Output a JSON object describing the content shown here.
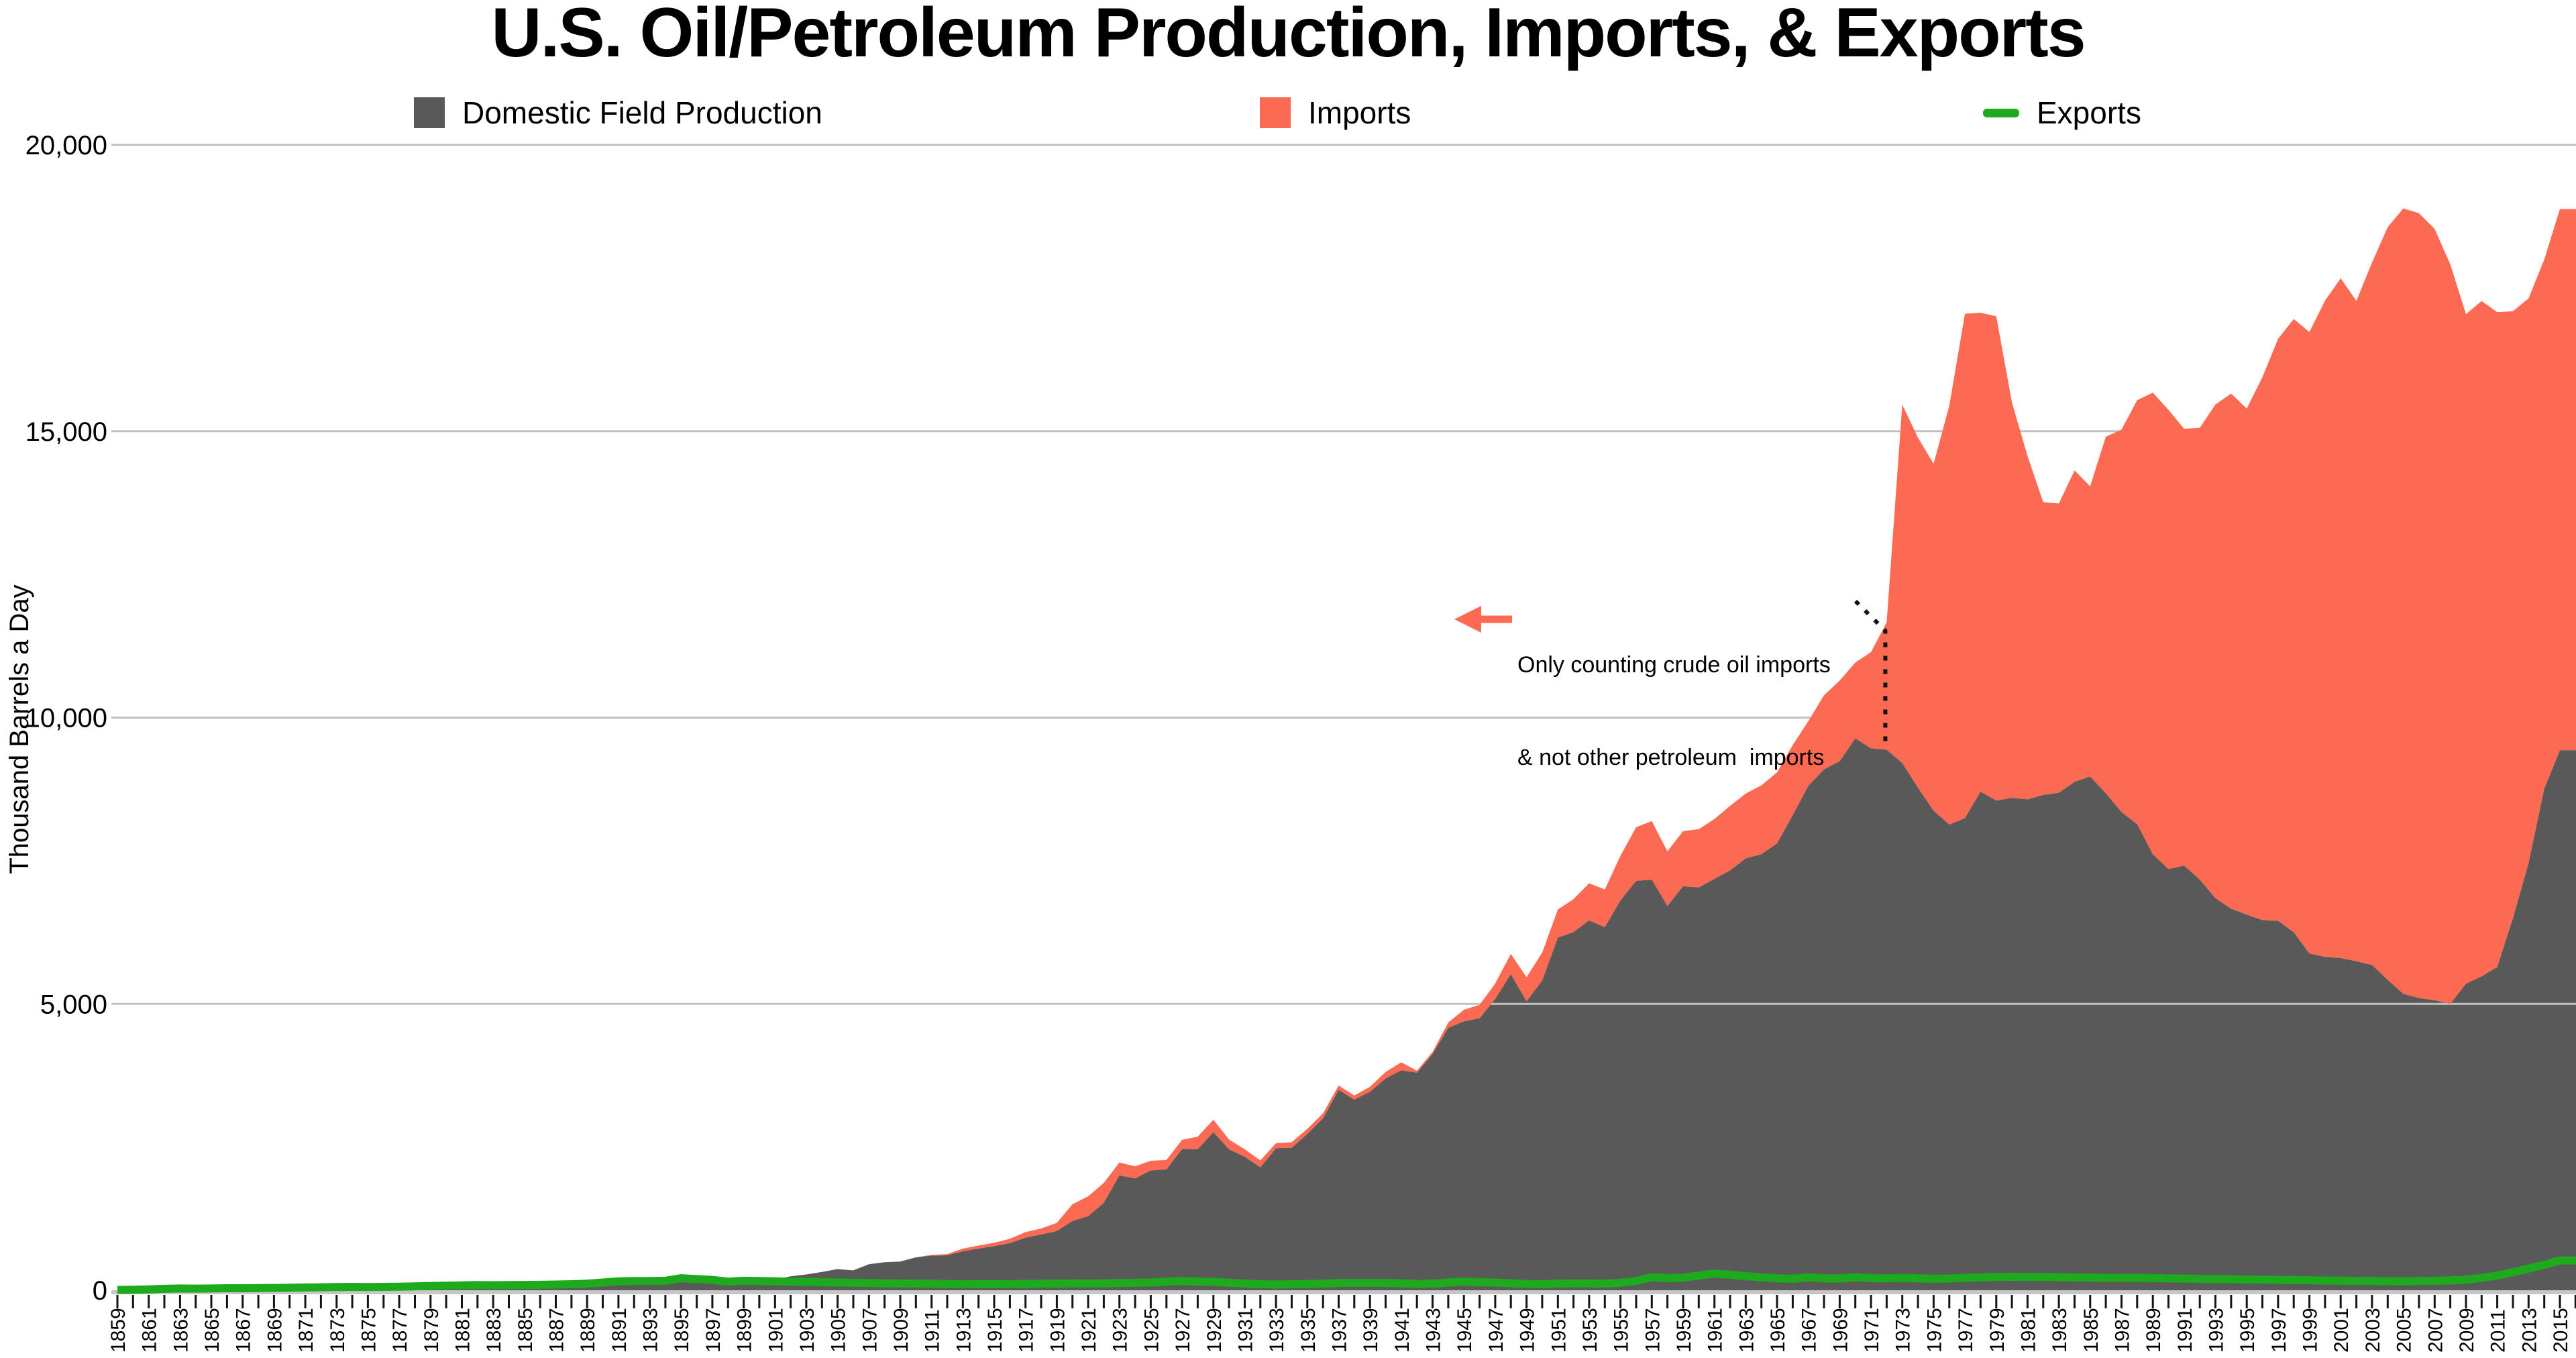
{
  "title": "U.S. Oil/Petroleum Production, Imports, & Exports",
  "legend": [
    {
      "label": "Domestic Field Production",
      "color": "#595959",
      "shape": "square"
    },
    {
      "label": "Imports",
      "color": "#FC6A53",
      "shape": "square"
    },
    {
      "label": "Exports",
      "color": "#1DAB1D",
      "shape": "dash"
    }
  ],
  "y_axis": {
    "title": "Thousand Barrels a Day",
    "max": 20000,
    "ticks": [
      {
        "value": 0,
        "label": "0"
      },
      {
        "value": 5000,
        "label": "5,000"
      },
      {
        "value": 10000,
        "label": "10,000"
      },
      {
        "value": 15000,
        "label": "15,000"
      },
      {
        "value": 20000,
        "label": "20,000"
      }
    ]
  },
  "annotation": {
    "line1": "Only counting crude oil imports",
    "line2": "& not other petroleum  imports",
    "arrow_color": "#FC6A53"
  },
  "colors": {
    "production": "#595959",
    "imports": "#FC6A53",
    "exports": "#1DAB1D",
    "gridline": "#C2C2C2",
    "zero_line": "#C6C6C6",
    "tick": "#141414",
    "dotted_line": "#111111"
  },
  "chart_data": {
    "type": "area",
    "stacked": true,
    "title": "U.S. Oil/Petroleum Production, Imports, & Exports",
    "xlabel": "",
    "ylabel": "Thousand Barrels a Day",
    "ylim": [
      0,
      20000
    ],
    "x_tick_label_step": 2,
    "legend_position": "top",
    "grid": true,
    "years": [
      1859,
      1860,
      1861,
      1862,
      1863,
      1864,
      1865,
      1866,
      1867,
      1868,
      1869,
      1870,
      1871,
      1872,
      1873,
      1874,
      1875,
      1876,
      1877,
      1878,
      1879,
      1880,
      1881,
      1882,
      1883,
      1884,
      1885,
      1886,
      1887,
      1888,
      1889,
      1890,
      1891,
      1892,
      1893,
      1894,
      1895,
      1896,
      1897,
      1898,
      1899,
      1900,
      1901,
      1902,
      1903,
      1904,
      1905,
      1906,
      1907,
      1908,
      1909,
      1910,
      1911,
      1912,
      1913,
      1914,
      1915,
      1916,
      1917,
      1918,
      1919,
      1920,
      1921,
      1922,
      1923,
      1924,
      1925,
      1926,
      1927,
      1928,
      1929,
      1930,
      1931,
      1932,
      1933,
      1934,
      1935,
      1936,
      1937,
      1938,
      1939,
      1940,
      1941,
      1942,
      1943,
      1944,
      1945,
      1946,
      1947,
      1948,
      1949,
      1950,
      1951,
      1952,
      1953,
      1954,
      1955,
      1956,
      1957,
      1958,
      1959,
      1960,
      1961,
      1962,
      1963,
      1964,
      1965,
      1966,
      1967,
      1968,
      1969,
      1970,
      1971,
      1972,
      1973,
      1974,
      1975,
      1976,
      1977,
      1978,
      1979,
      1980,
      1981,
      1982,
      1983,
      1984,
      1985,
      1986,
      1987,
      1988,
      1989,
      1990,
      1991,
      1992,
      1993,
      1994,
      1995,
      1996,
      1997,
      1998,
      1999,
      2000,
      2001,
      2002,
      2003,
      2004,
      2005,
      2006,
      2007,
      2008,
      2009,
      2010,
      2011,
      2012,
      2013,
      2014,
      2015
    ],
    "series": [
      {
        "name": "Domestic Field Production",
        "render": "area",
        "color": "#595959",
        "values": [
          1,
          1,
          6,
          8,
          7,
          6,
          7,
          10,
          9,
          10,
          12,
          14,
          14,
          17,
          27,
          30,
          24,
          25,
          37,
          42,
          54,
          72,
          76,
          83,
          64,
          66,
          60,
          77,
          78,
          76,
          96,
          126,
          149,
          138,
          133,
          135,
          145,
          167,
          166,
          152,
          157,
          174,
          190,
          243,
          275,
          320,
          369,
          347,
          455,
          489,
          501,
          574,
          604,
          609,
          681,
          728,
          770,
          822,
          919,
          974,
          1034,
          1210,
          1294,
          1527,
          2007,
          1952,
          2092,
          2110,
          2466,
          2463,
          2760,
          2460,
          2332,
          2145,
          2481,
          2488,
          2730,
          3001,
          3500,
          3329,
          3466,
          3697,
          3842,
          3799,
          4125,
          4584,
          4695,
          4750,
          5088,
          5520,
          5046,
          5407,
          6158,
          6256,
          6458,
          6342,
          6807,
          7151,
          7170,
          6710,
          7054,
          7035,
          7183,
          7332,
          7542,
          7614,
          7804,
          8295,
          8810,
          9096,
          9238,
          9637,
          9463,
          9441,
          9208,
          8774,
          8375,
          8132,
          8245,
          8707,
          8552,
          8597,
          8572,
          8649,
          8688,
          8879,
          8971,
          8680,
          8349,
          8140,
          7613,
          7355,
          7417,
          7171,
          6847,
          6662,
          6560,
          6465,
          6452,
          6252,
          5881,
          5822,
          5801,
          5746,
          5681,
          5419,
          5178,
          5102,
          5064,
          5000,
          5353,
          5482,
          5644,
          6497,
          7461,
          8759,
          9431
        ]
      },
      {
        "name": "Imports",
        "render": "area",
        "color": "#FC6A53",
        "values": [
          0,
          0,
          0,
          0,
          0,
          0,
          0,
          0,
          0,
          0,
          0,
          0,
          0,
          0,
          0,
          0,
          0,
          0,
          0,
          0,
          0,
          0,
          0,
          0,
          0,
          0,
          0,
          0,
          0,
          0,
          0,
          0,
          0,
          0,
          0,
          0,
          0,
          0,
          0,
          0,
          0,
          0,
          0,
          0,
          0,
          0,
          0,
          0,
          0,
          0,
          0,
          0,
          13,
          22,
          46,
          52,
          60,
          75,
          96,
          104,
          142,
          291,
          345,
          347,
          224,
          211,
          169,
          164,
          160,
          219,
          217,
          171,
          130,
          122,
          87,
          97,
          88,
          88,
          75,
          71,
          88,
          113,
          139,
          34,
          37,
          91,
          203,
          234,
          268,
          353,
          421,
          487,
          490,
          573,
          648,
          656,
          781,
          934,
          1022,
          953,
          964,
          1015,
          1047,
          1126,
          1132,
          1203,
          1238,
          1225,
          1129,
          1293,
          1408,
          1324,
          1681,
          2222,
          6256,
          6112,
          6056,
          7313,
          8807,
          8363,
          8456,
          6909,
          5996,
          5113,
          5051,
          5437,
          5067,
          6224,
          6678,
          7402,
          8061,
          8018,
          7627,
          7888,
          8620,
          8996,
          8835,
          9478,
          10162,
          10708,
          10852,
          11459,
          11871,
          11530,
          12264,
          13145,
          13714,
          13707,
          13468,
          12915,
          11691,
          11793,
          11436,
          10598,
          9859,
          9241,
          9449
        ]
      },
      {
        "name": "Exports",
        "render": "line",
        "color": "#1DAB1D",
        "values": [
          5,
          8,
          15,
          25,
          30,
          28,
          30,
          35,
          35,
          38,
          40,
          45,
          48,
          52,
          55,
          58,
          55,
          58,
          62,
          68,
          75,
          80,
          85,
          90,
          88,
          90,
          92,
          95,
          100,
          105,
          115,
          135,
          155,
          160,
          160,
          165,
          210,
          195,
          180,
          150,
          165,
          160,
          155,
          150,
          145,
          140,
          135,
          130,
          125,
          120,
          118,
          115,
          112,
          110,
          108,
          105,
          105,
          108,
          110,
          112,
          115,
          120,
          118,
          120,
          125,
          130,
          135,
          150,
          160,
          150,
          145,
          130,
          115,
          105,
          100,
          105,
          110,
          115,
          125,
          130,
          128,
          125,
          120,
          110,
          115,
          135,
          150,
          140,
          135,
          120,
          110,
          105,
          115,
          120,
          118,
          115,
          130,
          160,
          230,
          210,
          220,
          255,
          290,
          270,
          245,
          225,
          210,
          200,
          225,
          205,
          205,
          225,
          210,
          208,
          215,
          208,
          200,
          205,
          215,
          225,
          230,
          235,
          232,
          230,
          228,
          224,
          220,
          216,
          214,
          216,
          212,
          208,
          204,
          200,
          196,
          192,
          188,
          186,
          182,
          178,
          174,
          170,
          166,
          163,
          160,
          158,
          157,
          160,
          165,
          172,
          185,
          215,
          255,
          315,
          380,
          445,
          520
        ]
      }
    ]
  }
}
